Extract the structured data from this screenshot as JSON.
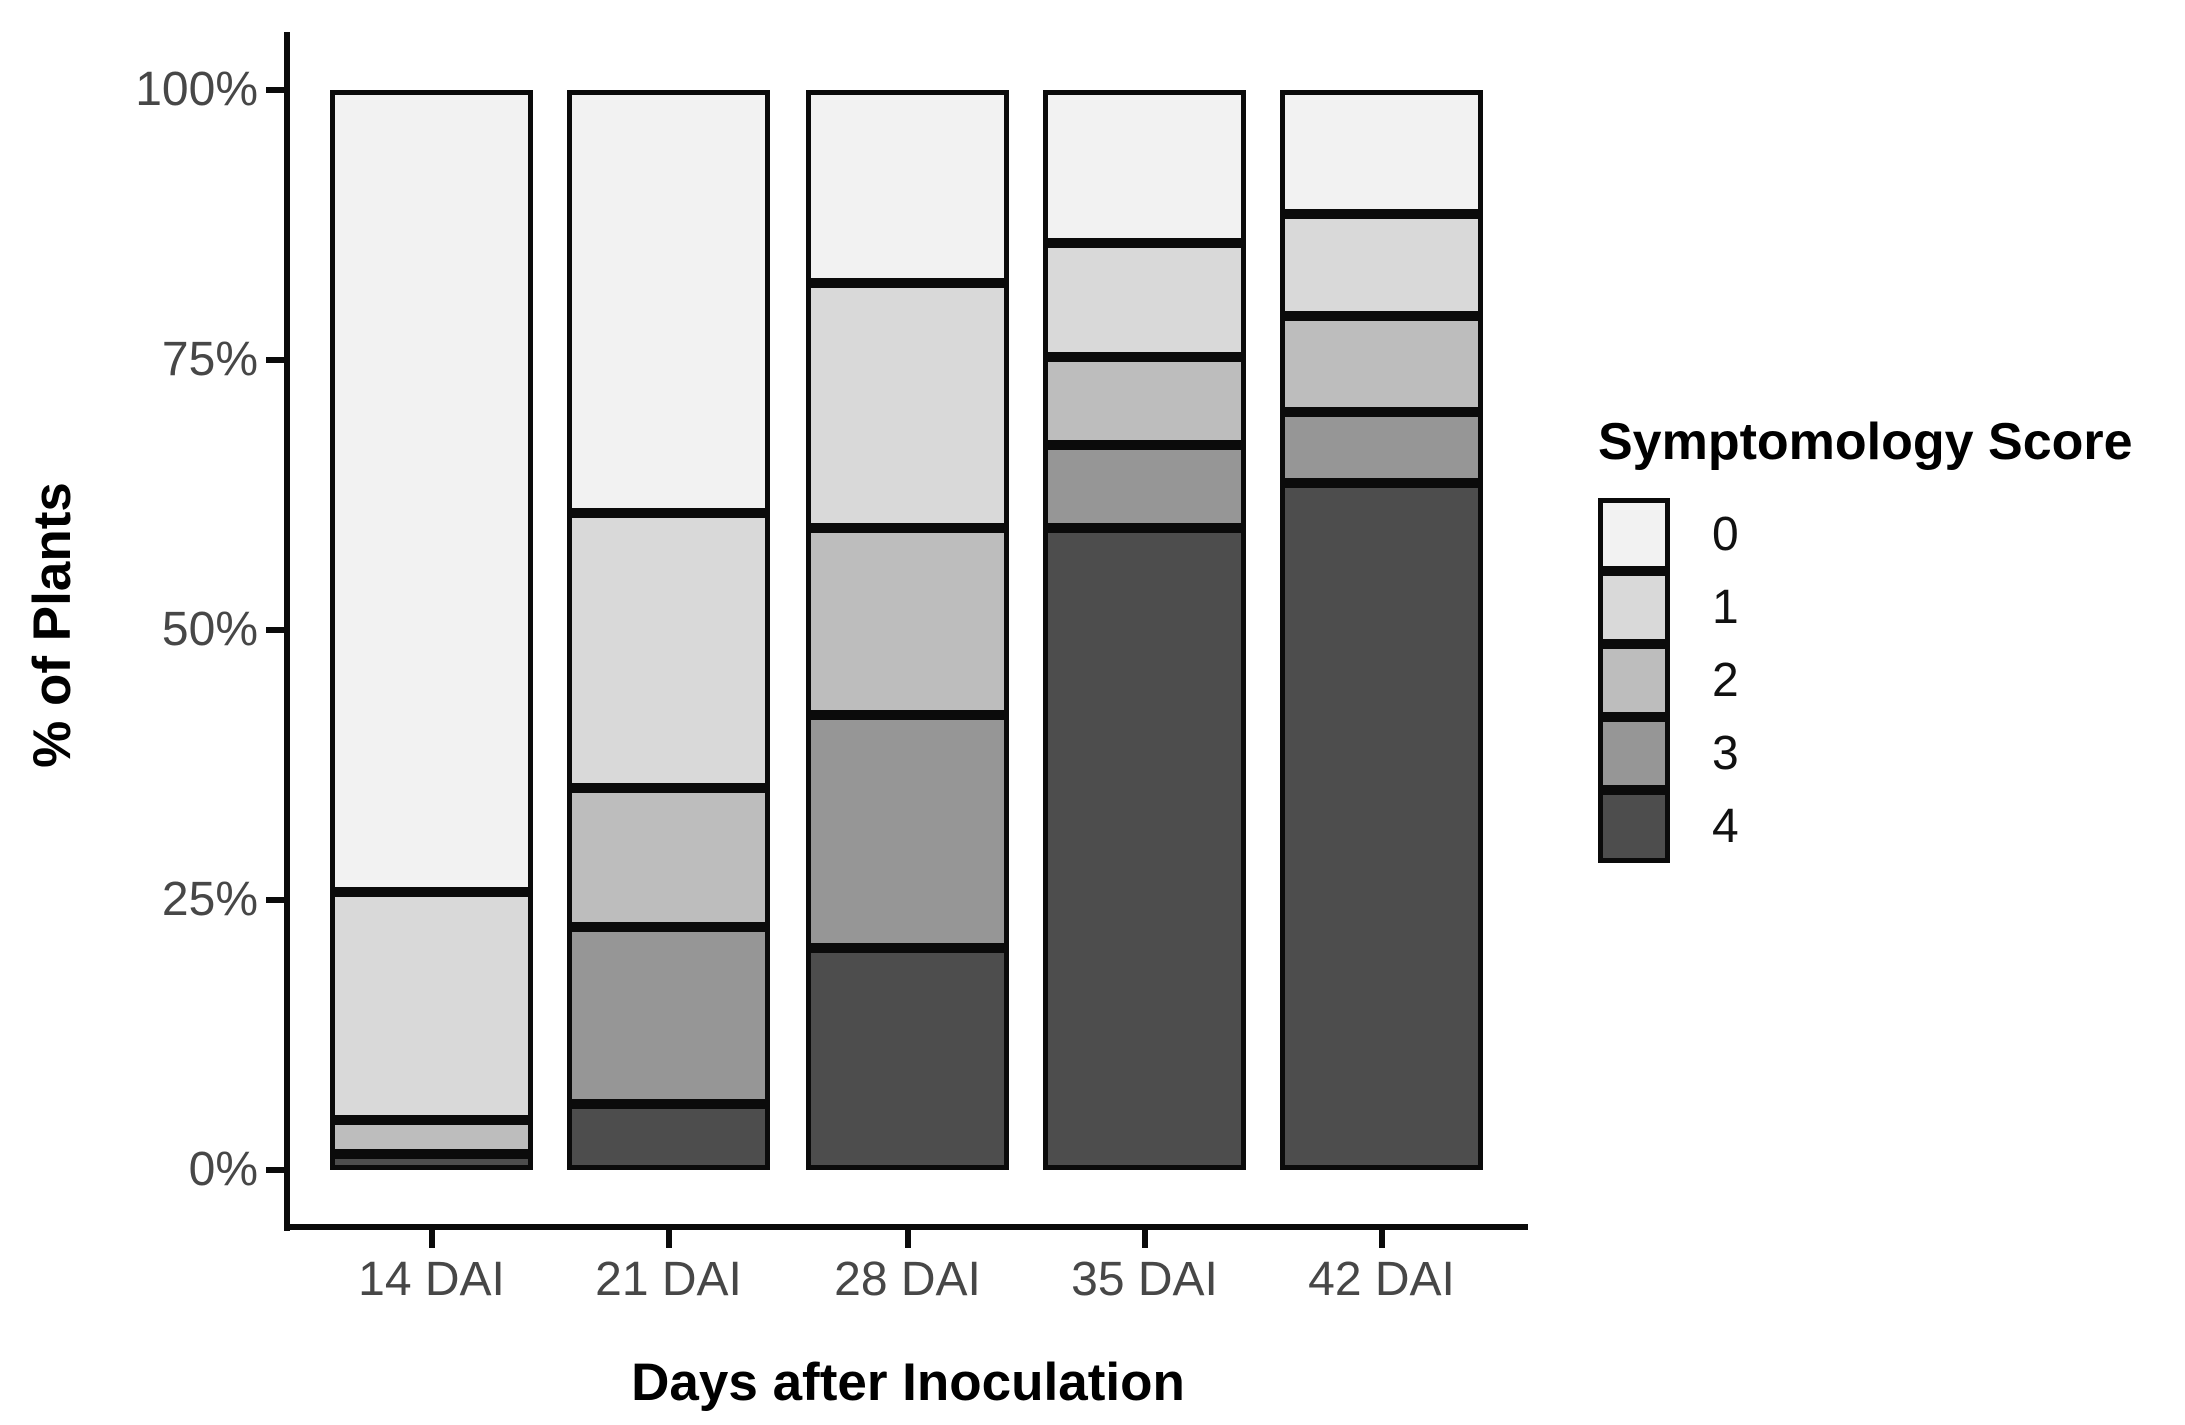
{
  "chart_data": {
    "type": "bar",
    "stacked": "percent",
    "title": "",
    "xlabel": "Days after Inoculation",
    "ylabel": "% of Plants",
    "categories": [
      "14 DAI",
      "21 DAI",
      "28 DAI",
      "35 DAI",
      "42 DAI"
    ],
    "ylim": [
      0,
      100
    ],
    "grid": false,
    "y_ticks": [
      {
        "label": "0%",
        "value": 0
      },
      {
        "label": "25%",
        "value": 25
      },
      {
        "label": "50%",
        "value": 50
      },
      {
        "label": "75%",
        "value": 75
      },
      {
        "label": "100%",
        "value": 100
      }
    ],
    "legend": {
      "title": "Symptomology Score",
      "position": "right",
      "entries": [
        {
          "label": "0",
          "color": "#f2f2f2"
        },
        {
          "label": "1",
          "color": "#d9d9d9"
        },
        {
          "label": "2",
          "color": "#bdbdbd"
        },
        {
          "label": "3",
          "color": "#969696"
        },
        {
          "label": "4",
          "color": "#4d4d4d"
        }
      ]
    },
    "series": [
      {
        "name": "0",
        "color": "#f2f2f2",
        "values": [
          74.3,
          39.2,
          17.9,
          14.2,
          11.5
        ]
      },
      {
        "name": "1",
        "color": "#d9d9d9",
        "values": [
          21.1,
          25.4,
          22.7,
          10.5,
          9.4
        ]
      },
      {
        "name": "2",
        "color": "#bdbdbd",
        "values": [
          3.1,
          12.9,
          17.3,
          8.2,
          8.9
        ]
      },
      {
        "name": "3",
        "color": "#969696",
        "values": [
          0.0,
          16.4,
          21.5,
          7.7,
          6.6
        ]
      },
      {
        "name": "4",
        "color": "#4d4d4d",
        "values": [
          1.5,
          6.1,
          20.6,
          59.4,
          63.6
        ]
      }
    ],
    "stack_order_top_to_bottom": [
      "0",
      "1",
      "2",
      "3",
      "4"
    ],
    "axis_color": "#0b0b0b",
    "tick_label_color": "#474747"
  }
}
